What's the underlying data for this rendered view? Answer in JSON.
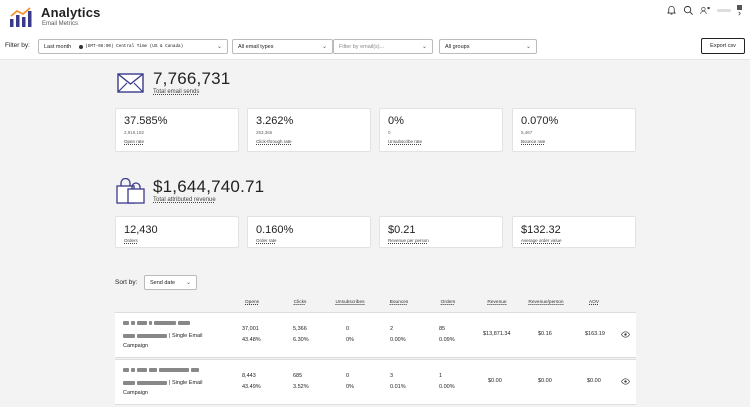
{
  "header": {
    "title": "Analytics",
    "subtitle": "Email Metrics"
  },
  "filters": {
    "label": "Filter by:",
    "date_range": "Last month",
    "timezone": "(GMT-06:00) Central Time (US & Canada)",
    "email_types": "All email types",
    "email_filter_placeholder": "Filter by email(s)...",
    "groups": "All groups",
    "export_label": "Export csv"
  },
  "summary": {
    "email_total": "7,766,731",
    "email_total_label": "Total email sends",
    "revenue_total": "$1,644,740.71",
    "revenue_total_label": "Total attributed revenue"
  },
  "email_metrics": [
    {
      "value": "37.585%",
      "sub": "2,919,182",
      "label": "Open rate"
    },
    {
      "value": "3.262%",
      "sub": "253,365",
      "label": "Click-through rate"
    },
    {
      "value": "0%",
      "sub": "0",
      "label": "Unsubscribe rate"
    },
    {
      "value": "0.070%",
      "sub": "5,467",
      "label": "Bounce rate"
    }
  ],
  "revenue_metrics": [
    {
      "value": "12,430",
      "label": "Orders"
    },
    {
      "value": "0.160%",
      "label": "Order rate"
    },
    {
      "value": "$0.21",
      "label": "Revenue per person"
    },
    {
      "value": "$132.32",
      "label": "Average order value"
    }
  ],
  "sort": {
    "label": "Sort by:",
    "value": "Send date"
  },
  "table": {
    "columns": [
      "Opens",
      "Clicks",
      "Unsubscribes",
      "Bounces",
      "Orders",
      "Revenue",
      "Revenue/person",
      "AOV"
    ],
    "rows": [
      {
        "type_label": "| Single Email",
        "category": "Campaign",
        "opens": "37,001",
        "opens_pct": "43.48%",
        "clicks": "5,366",
        "clicks_pct": "6.30%",
        "unsubs": "0",
        "unsubs_pct": "0%",
        "bounces": "2",
        "bounces_pct": "0.00%",
        "orders": "85",
        "orders_pct": "0.09%",
        "revenue": "$13,871.34",
        "rev_person": "$0.16",
        "aov": "$163.19"
      },
      {
        "type_label": "| Single Email",
        "category": "Campaign",
        "opens": "8,443",
        "opens_pct": "43.49%",
        "clicks": "685",
        "clicks_pct": "3.52%",
        "unsubs": "0",
        "unsubs_pct": "0%",
        "bounces": "3",
        "bounces_pct": "0.01%",
        "orders": "1",
        "orders_pct": "0.00%",
        "revenue": "$0.00",
        "rev_person": "$0.00",
        "aov": "$0.00"
      }
    ]
  },
  "colors": {
    "accent": "#3a3a8a",
    "logo_orange": "#f28c28",
    "card_border": "#e2e2e2"
  }
}
